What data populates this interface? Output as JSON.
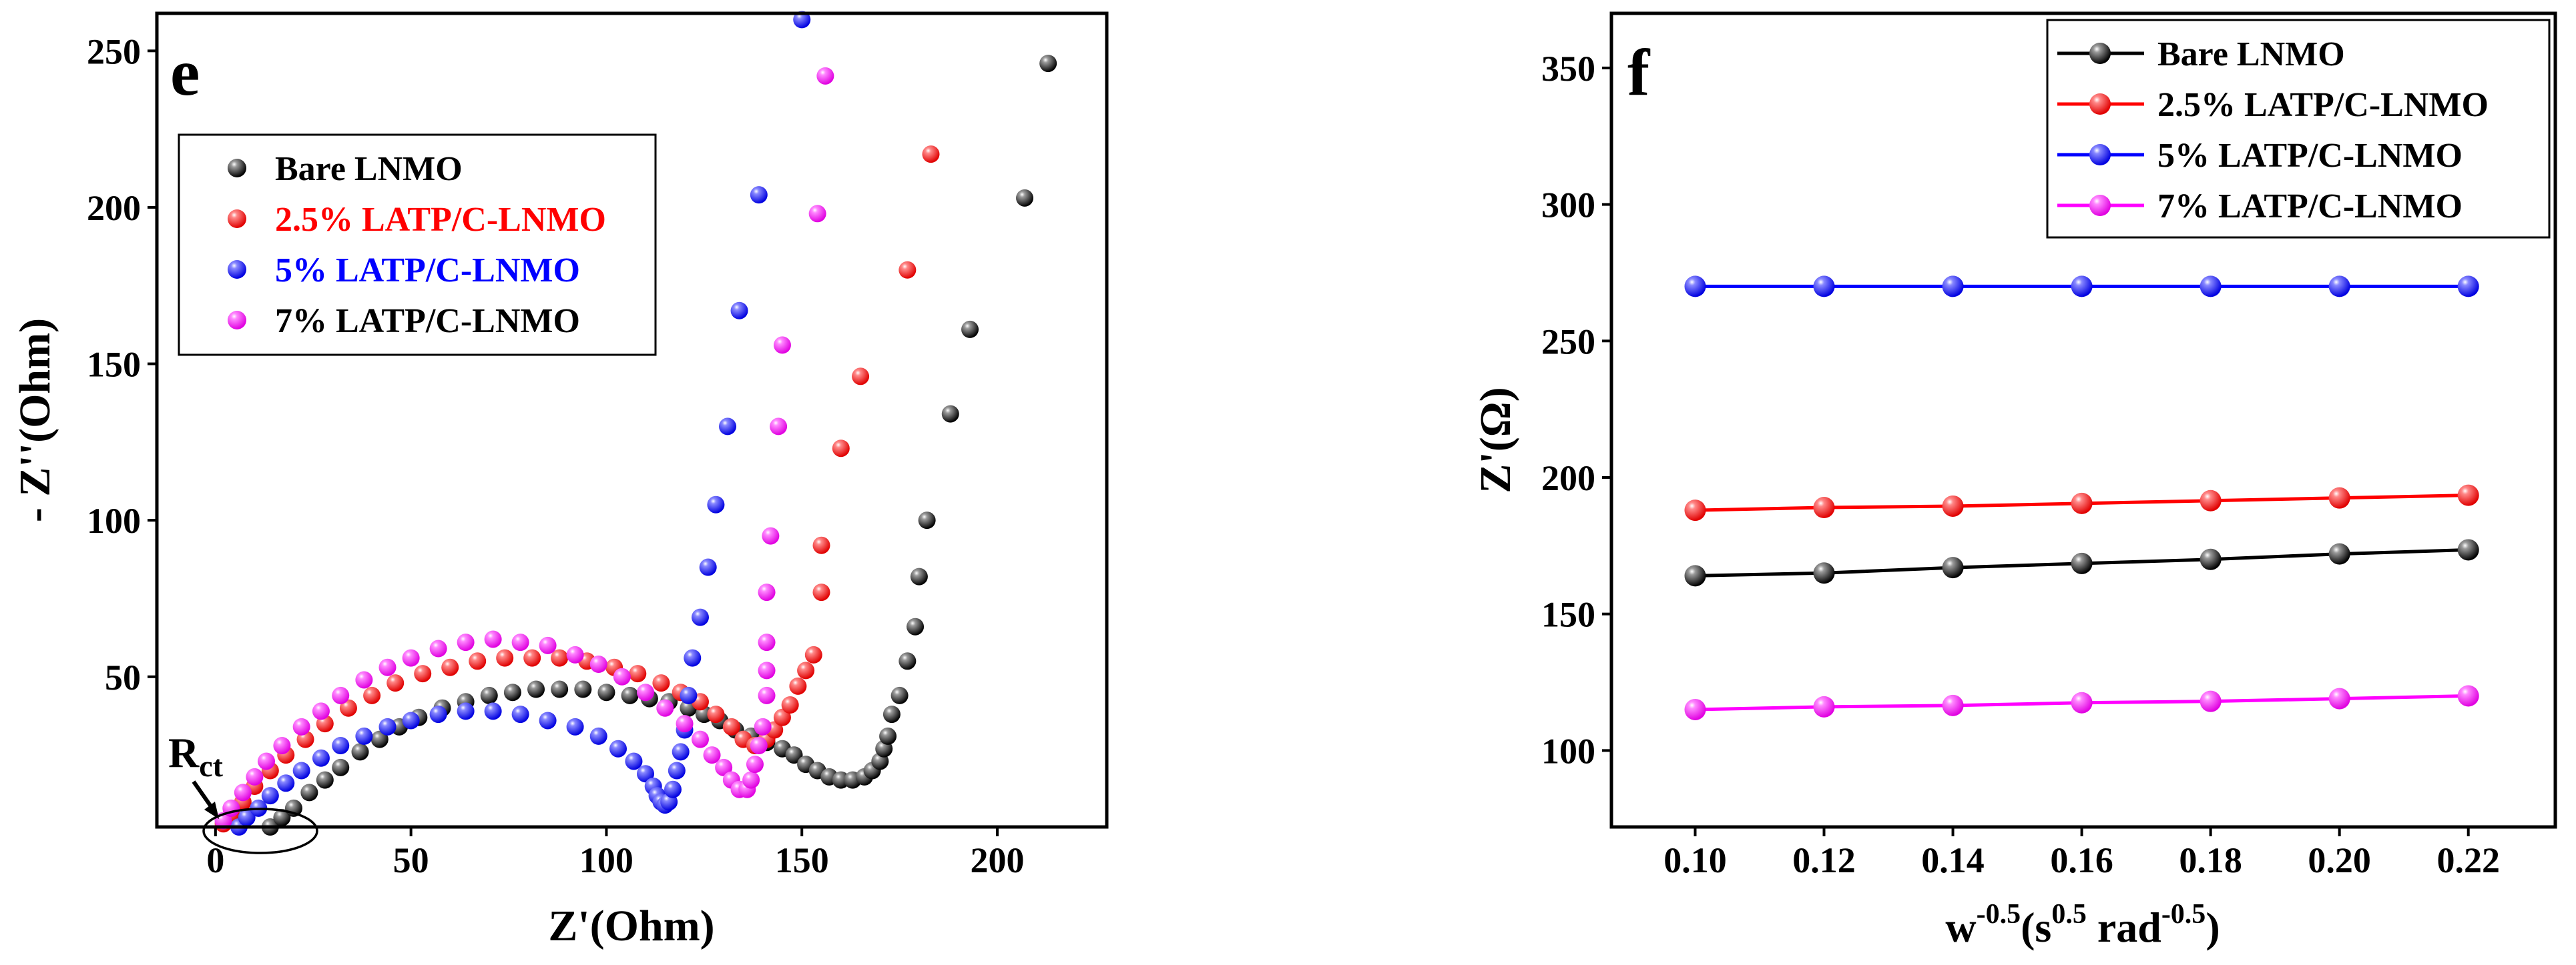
{
  "chart_data": [
    {
      "panel_label": "e",
      "type": "scatter",
      "xlabel": "Z'(Ohm)",
      "ylabel": "- Z''(Ohm)",
      "xlim": [
        -15,
        228
      ],
      "ylim": [
        2,
        262
      ],
      "xticks": [
        "0",
        "50",
        "100",
        "150",
        "200"
      ],
      "xtick_values": [
        0,
        50,
        100,
        150,
        200
      ],
      "yticks": [
        "50",
        "100",
        "150",
        "200",
        "250"
      ],
      "ytick_values": [
        50,
        100,
        150,
        200,
        250
      ],
      "annotation": {
        "main": "R",
        "sub": "ct"
      },
      "legend": [
        "Bare LNMO",
        "2.5% LATP/C-LNMO",
        "5% LATP/C-LNMO",
        "7% LATP/C-LNMO"
      ],
      "series": [
        {
          "name": "Bare LNMO",
          "color": "#000000",
          "points": [
            [
              14,
              2
            ],
            [
              17,
              5
            ],
            [
              20,
              8
            ],
            [
              24,
              13
            ],
            [
              28,
              17
            ],
            [
              32,
              21
            ],
            [
              37,
              26
            ],
            [
              42,
              30
            ],
            [
              47,
              34
            ],
            [
              52,
              37
            ],
            [
              58,
              40
            ],
            [
              64,
              42
            ],
            [
              70,
              44
            ],
            [
              76,
              45
            ],
            [
              82,
              46
            ],
            [
              88,
              46
            ],
            [
              94,
              46
            ],
            [
              100,
              45
            ],
            [
              106,
              44
            ],
            [
              111,
              43
            ],
            [
              116,
              42
            ],
            [
              121,
              40
            ],
            [
              125,
              38
            ],
            [
              129,
              36
            ],
            [
              133,
              33
            ],
            [
              137,
              31
            ],
            [
              141,
              29
            ],
            [
              145,
              27
            ],
            [
              148,
              25
            ],
            [
              151,
              22
            ],
            [
              154,
              20
            ],
            [
              157,
              18
            ],
            [
              160,
              17
            ],
            [
              163,
              17
            ],
            [
              166,
              18
            ],
            [
              168,
              20
            ],
            [
              170,
              23
            ],
            [
              171,
              27
            ],
            [
              172,
              31
            ],
            [
              173,
              38
            ],
            [
              175,
              44
            ],
            [
              177,
              55
            ],
            [
              179,
              66
            ],
            [
              180,
              82
            ],
            [
              182,
              100
            ],
            [
              188,
              134
            ],
            [
              193,
              161
            ],
            [
              207,
              203
            ],
            [
              213,
              246
            ]
          ]
        },
        {
          "name": "2.5% LATP/C-LNMO",
          "color": "#ff0000",
          "points": [
            [
              2,
              3
            ],
            [
              4,
              6
            ],
            [
              7,
              10
            ],
            [
              10,
              15
            ],
            [
              14,
              20
            ],
            [
              18,
              25
            ],
            [
              23,
              30
            ],
            [
              28,
              35
            ],
            [
              34,
              40
            ],
            [
              40,
              44
            ],
            [
              46,
              48
            ],
            [
              53,
              51
            ],
            [
              60,
              53
            ],
            [
              67,
              55
            ],
            [
              74,
              56
            ],
            [
              81,
              56
            ],
            [
              88,
              56
            ],
            [
              95,
              55
            ],
            [
              102,
              53
            ],
            [
              108,
              51
            ],
            [
              114,
              48
            ],
            [
              119,
              45
            ],
            [
              124,
              42
            ],
            [
              128,
              38
            ],
            [
              132,
              34
            ],
            [
              135,
              30
            ],
            [
              138,
              28
            ],
            [
              141,
              30
            ],
            [
              143,
              33
            ],
            [
              145,
              37
            ],
            [
              147,
              41
            ],
            [
              149,
              47
            ],
            [
              151,
              52
            ],
            [
              153,
              57
            ],
            [
              155,
              77
            ],
            [
              155,
              92
            ],
            [
              160,
              123
            ],
            [
              165,
              146
            ],
            [
              177,
              180
            ],
            [
              183,
              217
            ]
          ]
        },
        {
          "name": "5% LATP/C-LNMO",
          "color": "#0000ff",
          "points": [
            [
              6,
              2
            ],
            [
              8,
              5
            ],
            [
              11,
              8
            ],
            [
              14,
              12
            ],
            [
              18,
              16
            ],
            [
              22,
              20
            ],
            [
              27,
              24
            ],
            [
              32,
              28
            ],
            [
              38,
              31
            ],
            [
              44,
              34
            ],
            [
              50,
              36
            ],
            [
              57,
              38
            ],
            [
              64,
              39
            ],
            [
              71,
              39
            ],
            [
              78,
              38
            ],
            [
              85,
              36
            ],
            [
              92,
              34
            ],
            [
              98,
              31
            ],
            [
              103,
              27
            ],
            [
              107,
              23
            ],
            [
              110,
              19
            ],
            [
              112,
              15
            ],
            [
              113,
              12
            ],
            [
              114,
              10
            ],
            [
              115,
              9
            ],
            [
              116,
              10
            ],
            [
              117,
              14
            ],
            [
              118,
              20
            ],
            [
              119,
              26
            ],
            [
              120,
              33
            ],
            [
              121,
              44
            ],
            [
              122,
              56
            ],
            [
              124,
              69
            ],
            [
              126,
              85
            ],
            [
              128,
              105
            ],
            [
              131,
              130
            ],
            [
              134,
              167
            ],
            [
              139,
              204
            ],
            [
              150,
              260
            ]
          ]
        },
        {
          "name": "7% LATP/C-LNMO",
          "color": "#ff00ff",
          "points": [
            [
              2,
              4
            ],
            [
              4,
              8
            ],
            [
              7,
              13
            ],
            [
              10,
              18
            ],
            [
              13,
              23
            ],
            [
              17,
              28
            ],
            [
              22,
              34
            ],
            [
              27,
              39
            ],
            [
              32,
              44
            ],
            [
              38,
              49
            ],
            [
              44,
              53
            ],
            [
              50,
              56
            ],
            [
              57,
              59
            ],
            [
              64,
              61
            ],
            [
              71,
              62
            ],
            [
              78,
              61
            ],
            [
              85,
              60
            ],
            [
              92,
              57
            ],
            [
              98,
              54
            ],
            [
              104,
              50
            ],
            [
              110,
              45
            ],
            [
              115,
              40
            ],
            [
              120,
              35
            ],
            [
              124,
              30
            ],
            [
              127,
              25
            ],
            [
              130,
              21
            ],
            [
              132,
              17
            ],
            [
              134,
              14
            ],
            [
              136,
              14
            ],
            [
              137,
              17
            ],
            [
              138,
              22
            ],
            [
              139,
              28
            ],
            [
              140,
              34
            ],
            [
              141,
              44
            ],
            [
              141,
              52
            ],
            [
              141,
              61
            ],
            [
              141,
              77
            ],
            [
              142,
              95
            ],
            [
              144,
              130
            ],
            [
              145,
              156
            ],
            [
              154,
              198
            ],
            [
              156,
              242
            ]
          ]
        }
      ]
    },
    {
      "panel_label": "f",
      "type": "line",
      "xlabel": {
        "a": "w",
        "a_sup": "-0.5",
        "b": "(s",
        "b_sup": "0.5",
        "c": " rad",
        "c_sup": "-0.5",
        "d": ")"
      },
      "ylabel": "Z'(Ω)",
      "xlim": [
        0.087,
        0.2335
      ],
      "ylim": [
        72,
        370
      ],
      "x": [
        0.1,
        0.12,
        0.14,
        0.16,
        0.18,
        0.2,
        0.22
      ],
      "xticks": [
        "0.10",
        "0.12",
        "0.14",
        "0.16",
        "0.18",
        "0.20",
        "0.22"
      ],
      "yticks": [
        "100",
        "150",
        "200",
        "250",
        "300",
        "350"
      ],
      "ytick_values": [
        100,
        150,
        200,
        250,
        300,
        350
      ],
      "legend": [
        "Bare LNMO",
        "2.5% LATP/C-LNMO",
        "5% LATP/C-LNMO",
        "7% LATP/C-LNMO"
      ],
      "series": [
        {
          "name": "Bare LNMO",
          "color": "#000000",
          "values": [
            164,
            165,
            167,
            168.5,
            170,
            172,
            173.5
          ]
        },
        {
          "name": "2.5% LATP/C-LNMO",
          "color": "#ff0000",
          "values": [
            188,
            189,
            189.5,
            190.5,
            191.5,
            192.5,
            193.5
          ]
        },
        {
          "name": "5% LATP/C-LNMO",
          "color": "#0000ff",
          "values": [
            270,
            270,
            270,
            270,
            270,
            270,
            270
          ]
        },
        {
          "name": "7% LATP/C-LNMO",
          "color": "#ff00ff",
          "values": [
            115,
            116,
            116.5,
            117.5,
            118,
            119,
            120
          ]
        }
      ]
    }
  ]
}
